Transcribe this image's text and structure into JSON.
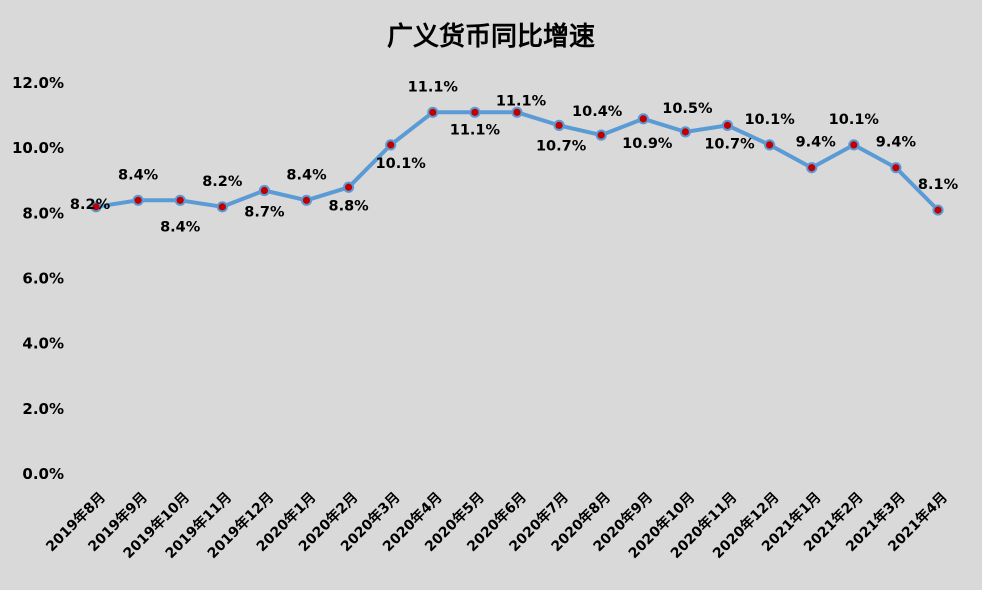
{
  "chart_data": {
    "type": "line",
    "title": "广义货币同比增速",
    "xlabel": "",
    "ylabel": "",
    "ylim": [
      0,
      12
    ],
    "y_ticks": [
      "0.0%",
      "2.0%",
      "4.0%",
      "6.0%",
      "8.0%",
      "10.0%",
      "12.0%"
    ],
    "grid": false,
    "legend": "none",
    "categories": [
      "2019年8月",
      "2019年9月",
      "2019年10月",
      "2019年11月",
      "2019年12月",
      "2020年1月",
      "2020年2月",
      "2020年3月",
      "2020年4月",
      "2020年5月",
      "2020年6月",
      "2020年7月",
      "2020年8月",
      "2020年9月",
      "2020年10月",
      "2020年11月",
      "2020年12月",
      "2021年1月",
      "2021年2月",
      "2021年3月",
      "2021年4月"
    ],
    "series": [
      {
        "values": [
          8.2,
          8.4,
          8.4,
          8.2,
          8.7,
          8.4,
          8.8,
          10.1,
          11.1,
          11.1,
          11.1,
          10.7,
          10.4,
          10.9,
          10.5,
          10.7,
          10.1,
          9.4,
          10.1,
          9.4,
          8.1
        ],
        "labels": [
          "8.2%",
          "8.4%",
          "8.4%",
          "8.2%",
          "8.7%",
          "8.4%",
          "8.8%",
          "10.1%",
          "11.1%",
          "11.1%",
          "11.1%",
          "10.7%",
          "10.4%",
          "10.9%",
          "10.5%",
          "10.7%",
          "10.1%",
          "9.4%",
          "10.1%",
          "9.4%",
          "8.1%"
        ]
      }
    ],
    "colors": {
      "line": "#5b9bd5",
      "marker_fill": "#c00000",
      "marker_stroke": "#5b9bd5",
      "background": "#d9d9d9"
    }
  }
}
